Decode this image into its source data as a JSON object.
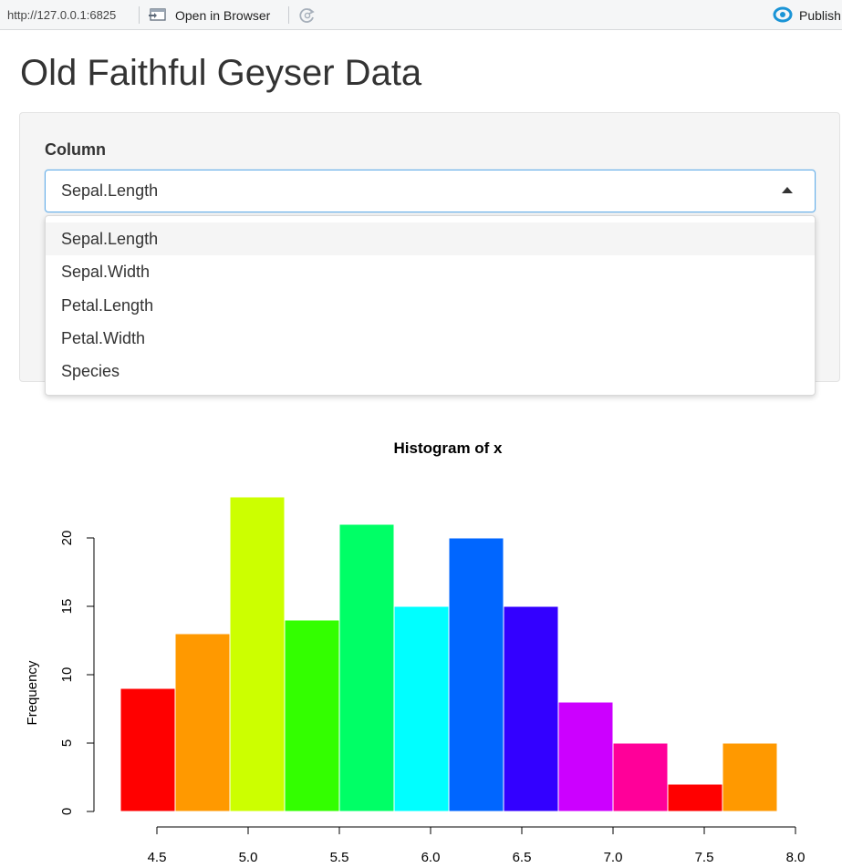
{
  "toolbar": {
    "url": "http://127.0.0.1:6825",
    "open_in_browser": "Open in Browser",
    "publish": "Publish"
  },
  "page": {
    "title": "Old Faithful Geyser Data"
  },
  "select": {
    "label": "Column",
    "value": "Sepal.Length",
    "options": [
      "Sepal.Length",
      "Sepal.Width",
      "Petal.Length",
      "Petal.Width",
      "Species"
    ],
    "highlighted_index": 0
  },
  "icons": {
    "open_in_browser": "browser-window-icon",
    "refresh": "refresh-icon",
    "publish": "publish-icon",
    "dropdown_caret": "caret-up-icon"
  },
  "colors": {
    "select_focus_border": "#66afe9",
    "well_background": "#f5f5f5",
    "publish_icon": "#1a94d6"
  },
  "chart_data": {
    "type": "bar",
    "title": "Histogram of x",
    "xlabel": "",
    "ylabel": "Frequency",
    "bin_edges": [
      4.3,
      4.6,
      4.9,
      5.2,
      5.5,
      5.8,
      6.1,
      6.4,
      6.7,
      7.0,
      7.3,
      7.6,
      7.9
    ],
    "values": [
      9,
      13,
      23,
      14,
      21,
      15,
      20,
      15,
      8,
      5,
      2,
      5
    ],
    "colors": [
      "#FF0000",
      "#FF9900",
      "#CCFF00",
      "#33FF00",
      "#00FF66",
      "#00FFFF",
      "#0066FF",
      "#3300FF",
      "#CC00FF",
      "#FF0099",
      "#FF0000",
      "#FF9900"
    ],
    "xticks": [
      "4.5",
      "5.0",
      "5.5",
      "6.0",
      "6.5",
      "7.0",
      "7.5",
      "8.0"
    ],
    "yticks": [
      "0",
      "5",
      "10",
      "15",
      "20"
    ],
    "xlim": [
      4.5,
      8.0
    ],
    "ylim": [
      0,
      20
    ],
    "grid": false,
    "legend": "none"
  }
}
